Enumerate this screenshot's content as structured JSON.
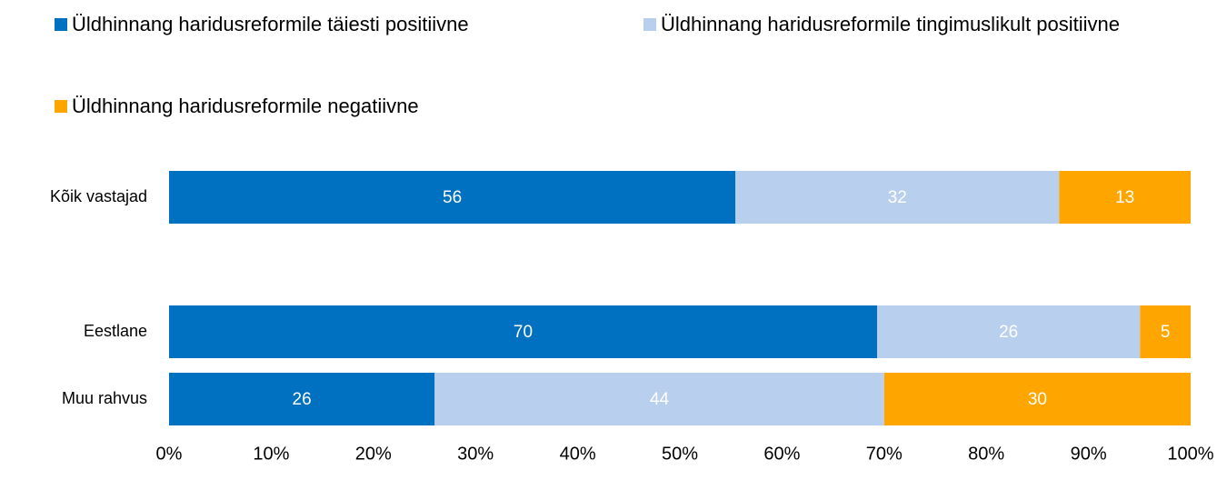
{
  "chart_data": {
    "type": "bar",
    "orientation": "horizontal",
    "stacking": "percent",
    "categories": [
      "Kõik vastajad",
      null,
      "Eestlane",
      "Muu rahvus"
    ],
    "series": [
      {
        "name": "Üldhinnang haridusreformile täiesti positiivne",
        "color": "#0070c0",
        "values": [
          56,
          null,
          70,
          26
        ]
      },
      {
        "name": "Üldhinnang haridusreformile tingimuslikult positiivne",
        "color": "#b9cfee",
        "values": [
          32,
          null,
          26,
          44
        ]
      },
      {
        "name": "Üldhinnang haridusreformile negatiivne",
        "color": "#ffa500",
        "values": [
          13,
          null,
          5,
          30
        ]
      }
    ],
    "xlim": [
      0,
      100
    ],
    "xticks": [
      {
        "value": 0,
        "label": "0%"
      },
      {
        "value": 10,
        "label": "10%"
      },
      {
        "value": 20,
        "label": "20%"
      },
      {
        "value": 30,
        "label": "30%"
      },
      {
        "value": 40,
        "label": "40%"
      },
      {
        "value": 50,
        "label": "50%"
      },
      {
        "value": 60,
        "label": "60%"
      },
      {
        "value": 70,
        "label": "70%"
      },
      {
        "value": 80,
        "label": "80%"
      },
      {
        "value": 90,
        "label": "90%"
      },
      {
        "value": 100,
        "label": "100%"
      }
    ],
    "legend": "top",
    "value_label_color": "#ffffff"
  }
}
